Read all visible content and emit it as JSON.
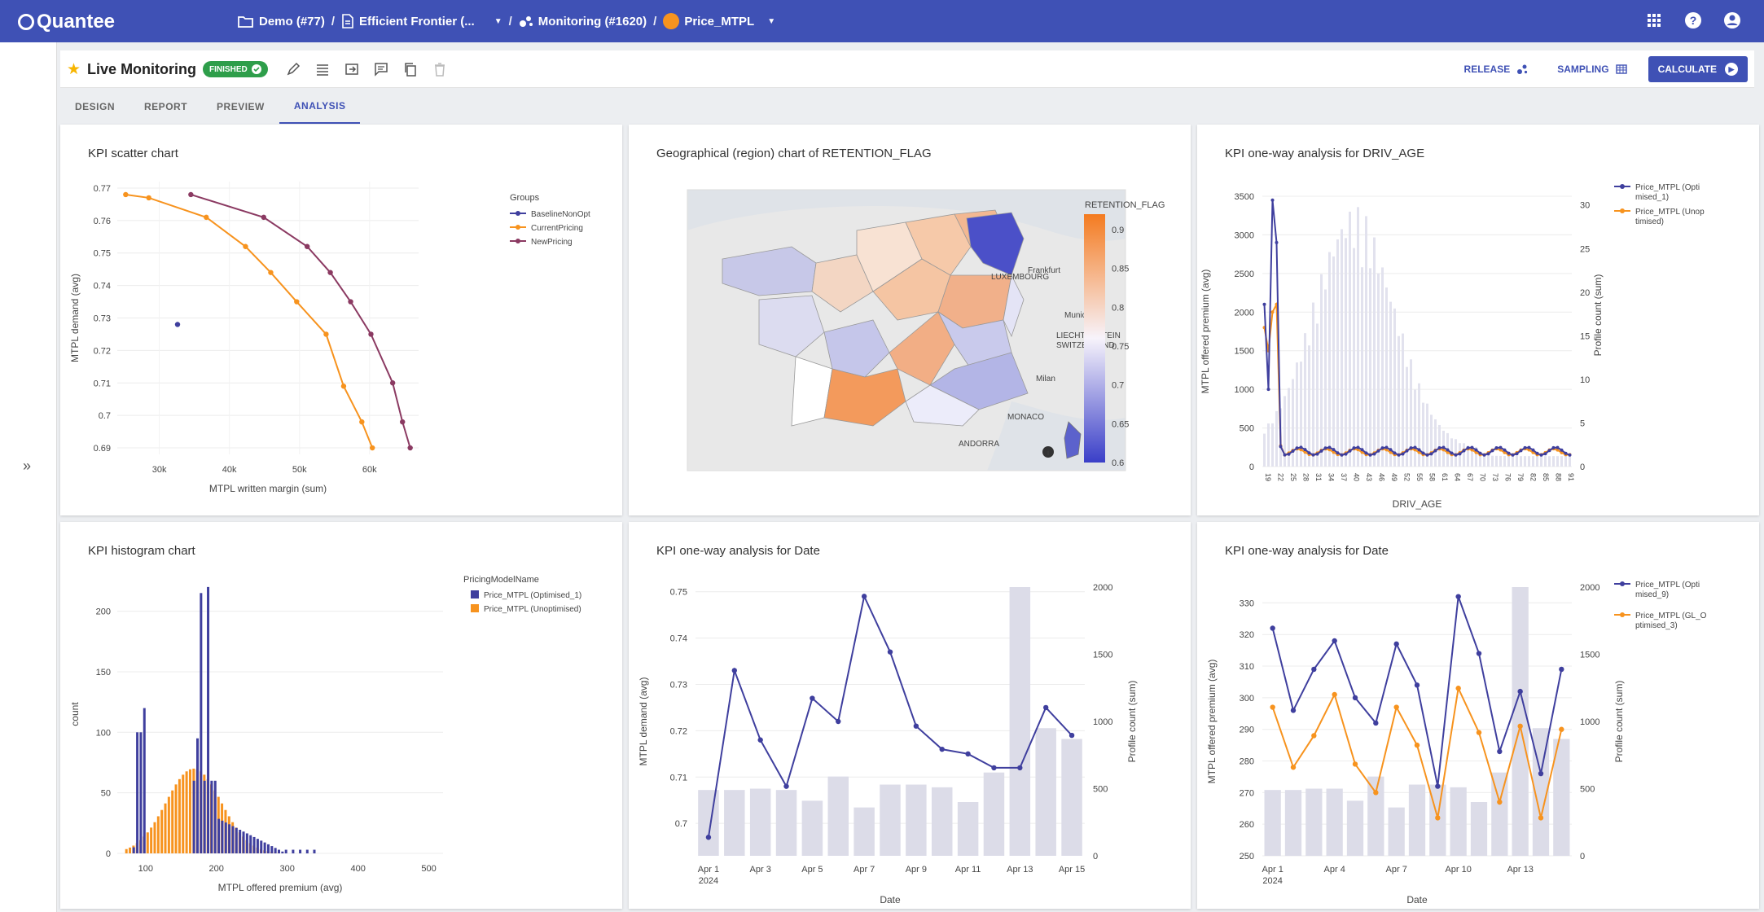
{
  "app": {
    "logo": "Quantee"
  },
  "breadcrumbs": {
    "project": "Demo (#77)",
    "model": "Efficient Frontier (...",
    "monitoring": "Monitoring (#1620)",
    "price": "Price_MTPL"
  },
  "page": {
    "title": "Live Monitoring",
    "status": "FINISHED"
  },
  "actions": {
    "release": "RELEASE",
    "sampling": "SAMPLING",
    "calculate": "CALCULATE"
  },
  "tabs": [
    "DESIGN",
    "REPORT",
    "PREVIEW",
    "ANALYSIS"
  ],
  "active_tab": "ANALYSIS",
  "colors": {
    "primary": "#3f51b5",
    "orange": "#f7931e",
    "purple": "#8b3a62",
    "green": "#2e9e4a",
    "bar_gray": "#dcdce8"
  },
  "panels": {
    "scatter": {
      "title": "KPI scatter chart"
    },
    "map": {
      "title": "Geographical (region) chart of RETENTION_FLAG"
    },
    "drivage": {
      "title": "KPI one-way analysis for DRIV_AGE"
    },
    "histogram": {
      "title": "KPI histogram chart"
    },
    "date1": {
      "title": "KPI one-way analysis for Date"
    },
    "date2": {
      "title": "KPI one-way analysis for Date"
    }
  },
  "chart_data": [
    {
      "type": "scatter",
      "title": "KPI scatter chart",
      "xlabel": "MTPL written margin (sum)",
      "ylabel": "MTPL demand (avg)",
      "xlim": [
        24000,
        67000
      ],
      "ylim": [
        0.688,
        0.772
      ],
      "xticks": [
        30000,
        40000,
        50000,
        60000
      ],
      "xtick_labels": [
        "30k",
        "40k",
        "50k",
        "60k"
      ],
      "yticks": [
        0.69,
        0.7,
        0.71,
        0.72,
        0.73,
        0.74,
        0.75,
        0.76,
        0.77
      ],
      "legend_title": "Groups",
      "series": [
        {
          "name": "BaselineNonOpt",
          "color": "#3f3f9e",
          "x": [
            32600
          ],
          "y": [
            0.728
          ]
        },
        {
          "name": "CurrentPricing",
          "color": "#f7931e",
          "x": [
            25200,
            28500,
            36700,
            42300,
            45900,
            49600,
            53800,
            56300,
            58900,
            60400
          ],
          "y": [
            0.768,
            0.767,
            0.761,
            0.752,
            0.744,
            0.735,
            0.725,
            0.709,
            0.698,
            0.69
          ]
        },
        {
          "name": "NewPricing",
          "color": "#8b3a62",
          "x": [
            34500,
            44900,
            51100,
            54400,
            57300,
            60200,
            63300,
            64700,
            65800
          ],
          "y": [
            0.768,
            0.761,
            0.752,
            0.744,
            0.735,
            0.725,
            0.71,
            0.698,
            0.69
          ]
        }
      ]
    },
    {
      "type": "heatmap",
      "title": "Geographical (region) chart of RETENTION_FLAG",
      "colorbar_title": "RETENTION_FLAG",
      "colorbar_ticks": [
        0.9,
        0.85,
        0.8,
        0.75,
        0.7,
        0.65,
        0.6
      ],
      "map_labels": [
        "Frankfurt",
        "Munich",
        "Milan",
        "LIECHTENSTEIN",
        "SWITZERLAND",
        "LUXEMBOURG",
        "MONACO",
        "ANDORRA"
      ]
    },
    {
      "type": "line",
      "title": "KPI one-way analysis for DRIV_AGE",
      "xlabel": "DRIV_AGE",
      "ylabel": "MTPL offered premium (avg)",
      "y2label": "Profile count (sum)",
      "ylim": [
        0,
        3500
      ],
      "y2lim": [
        0,
        30
      ],
      "yticks": [
        0,
        500,
        1000,
        1500,
        2000,
        2500,
        3000,
        3500
      ],
      "y2ticks": [
        0,
        5,
        10,
        15,
        20,
        25,
        30
      ],
      "xtick_labels": [
        "19",
        "22",
        "25",
        "28",
        "31",
        "34",
        "37",
        "40",
        "43",
        "46",
        "49",
        "52",
        "55",
        "58",
        "61",
        "64",
        "67",
        "70",
        "73",
        "76",
        "79",
        "82",
        "85",
        "88",
        "91"
      ],
      "series": [
        {
          "name": "Price_MTPL (Optimised_1)",
          "color": "#3f3f9e"
        },
        {
          "name": "Price_MTPL (Unoptimised)",
          "color": "#f7931e"
        }
      ]
    },
    {
      "type": "bar",
      "title": "KPI histogram chart",
      "xlabel": "MTPL offered premium (avg)",
      "ylabel": "count",
      "xlim": [
        60,
        520
      ],
      "ylim": [
        0,
        230
      ],
      "xticks": [
        100,
        200,
        300,
        400,
        500
      ],
      "yticks": [
        0,
        50,
        100,
        150,
        200
      ],
      "legend_title": "PricingModelName",
      "series": [
        {
          "name": "Price_MTPL (Optimised_1)",
          "color": "#3f3f9e"
        },
        {
          "name": "Price_MTPL (Unoptimised)",
          "color": "#f7931e"
        }
      ]
    },
    {
      "type": "line",
      "title": "KPI one-way analysis for Date",
      "xlabel": "Date",
      "ylabel": "MTPL demand (avg)",
      "y2label": "Profile count (sum)",
      "categories": [
        "Apr 1",
        "Apr 2",
        "Apr 3",
        "Apr 4",
        "Apr 5",
        "Apr 6",
        "Apr 7",
        "Apr 8",
        "Apr 9",
        "Apr 10",
        "Apr 11",
        "Apr 12",
        "Apr 13",
        "Apr 14",
        "Apr 15"
      ],
      "xtick_labels": [
        "Apr 1",
        "Apr 3",
        "Apr 5",
        "Apr 7",
        "Apr 9",
        "Apr 11",
        "Apr 13",
        "Apr 15"
      ],
      "xtick_year": "2024",
      "ylim": [
        0.693,
        0.751
      ],
      "y2lim": [
        0,
        2000
      ],
      "yticks": [
        0.7,
        0.71,
        0.72,
        0.73,
        0.74,
        0.75
      ],
      "y2ticks": [
        0,
        500,
        1000,
        1500,
        2000
      ],
      "series": [
        {
          "name": "MTPL demand (avg)",
          "type": "line",
          "color": "#3f3f9e",
          "values": [
            0.697,
            0.733,
            0.718,
            0.708,
            0.727,
            0.722,
            0.749,
            0.737,
            0.721,
            0.716,
            0.715,
            0.712,
            0.712,
            0.725,
            0.719
          ]
        },
        {
          "name": "Profile count (sum)",
          "type": "bar",
          "color": "#dcdce8",
          "values": [
            490,
            490,
            500,
            490,
            410,
            590,
            360,
            530,
            530,
            510,
            400,
            620,
            2000,
            950,
            870
          ]
        }
      ]
    },
    {
      "type": "line",
      "title": "KPI one-way analysis for Date",
      "xlabel": "Date",
      "ylabel": "MTPL offered premium (avg)",
      "y2label": "Profile count (sum)",
      "categories": [
        "Apr 1",
        "Apr 2",
        "Apr 3",
        "Apr 4",
        "Apr 5",
        "Apr 6",
        "Apr 7",
        "Apr 8",
        "Apr 9",
        "Apr 10",
        "Apr 11",
        "Apr 12",
        "Apr 13",
        "Apr 14",
        "Apr 15"
      ],
      "xtick_labels": [
        "Apr 1",
        "Apr 4",
        "Apr 7",
        "Apr 10",
        "Apr 13"
      ],
      "xtick_year": "2024",
      "ylim": [
        250,
        335
      ],
      "y2lim": [
        0,
        2000
      ],
      "yticks": [
        250,
        260,
        270,
        280,
        290,
        300,
        310,
        320,
        330
      ],
      "y2ticks": [
        0,
        500,
        1000,
        1500,
        2000
      ],
      "series": [
        {
          "name": "Price_MTPL (Optimised_9)",
          "type": "line",
          "color": "#3f3f9e",
          "values": [
            322,
            296,
            309,
            318,
            300,
            292,
            317,
            304,
            272,
            332,
            314,
            283,
            302,
            276,
            309
          ]
        },
        {
          "name": "Price_MTPL (GL_Optimised_3)",
          "type": "line",
          "color": "#f7931e",
          "values": [
            297,
            278,
            288,
            301,
            279,
            270,
            297,
            285,
            262,
            303,
            289,
            267,
            291,
            262,
            290
          ]
        },
        {
          "name": "Profile count (sum)",
          "type": "bar",
          "color": "#dcdce8",
          "values": [
            490,
            490,
            500,
            500,
            410,
            590,
            360,
            530,
            530,
            510,
            400,
            620,
            2000,
            950,
            870
          ]
        }
      ]
    }
  ]
}
